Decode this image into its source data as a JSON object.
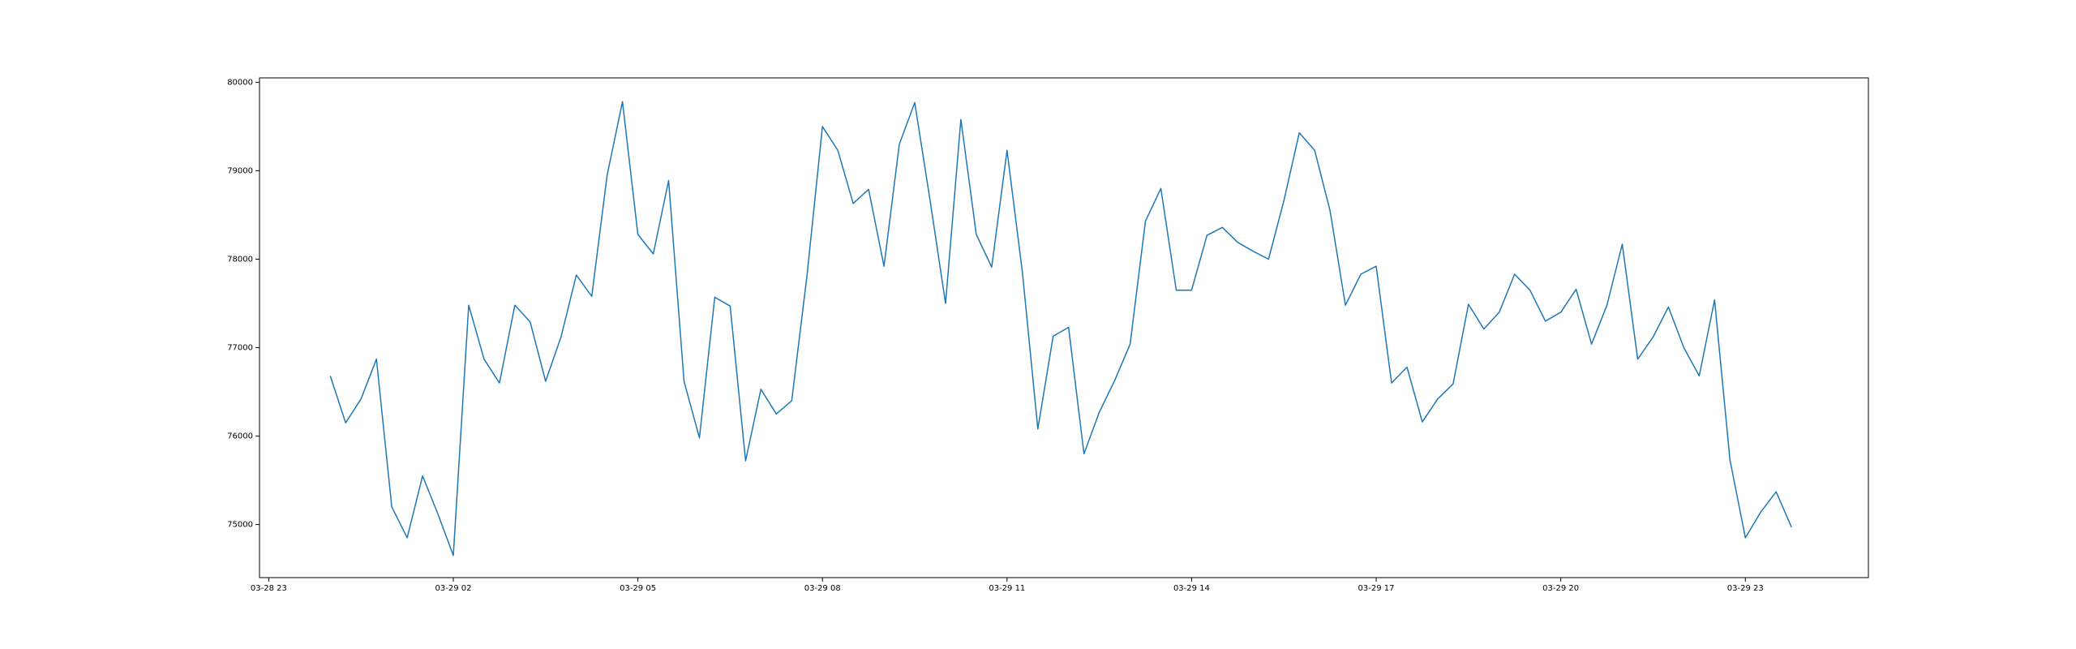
{
  "chart_data": {
    "type": "line",
    "title": "",
    "xlabel": "",
    "ylabel": "",
    "grid": false,
    "x_axis": {
      "tick_labels": [
        "03-28 23",
        "03-29 02",
        "03-29 05",
        "03-29 08",
        "03-29 11",
        "03-29 14",
        "03-29 17",
        "03-29 20",
        "03-29 23"
      ],
      "tick_hours": [
        0,
        3,
        6,
        9,
        12,
        15,
        18,
        21,
        24
      ],
      "xlim_hours": [
        -0.15,
        26
      ]
    },
    "y_axis": {
      "tick_labels": [
        "75000",
        "76000",
        "77000",
        "78000",
        "79000",
        "80000"
      ],
      "tick_values": [
        75000,
        76000,
        77000,
        78000,
        79000,
        80000
      ],
      "ylim": [
        74400,
        80050
      ]
    },
    "series": [
      {
        "color": "#1f77b4",
        "x_hours": [
          1.0,
          1.25,
          1.5,
          1.75,
          2.0,
          2.25,
          2.5,
          2.75,
          3.0,
          3.25,
          3.5,
          3.75,
          4.0,
          4.25,
          4.5,
          4.75,
          5.0,
          5.25,
          5.5,
          5.75,
          6.0,
          6.25,
          6.5,
          6.75,
          7.0,
          7.25,
          7.5,
          7.75,
          8.0,
          8.25,
          8.5,
          8.75,
          9.0,
          9.25,
          9.5,
          9.75,
          10.0,
          10.25,
          10.5,
          10.75,
          11.0,
          11.25,
          11.5,
          11.75,
          12.0,
          12.25,
          12.5,
          12.75,
          13.0,
          13.25,
          13.5,
          13.75,
          14.0,
          14.25,
          14.5,
          14.75,
          15.0,
          15.25,
          15.5,
          15.75,
          16.0,
          16.25,
          16.5,
          16.75,
          17.0,
          17.25,
          17.5,
          17.75,
          18.0,
          18.25,
          18.5,
          18.75,
          19.0,
          19.25,
          19.5,
          19.75,
          20.0,
          20.25,
          20.5,
          20.75,
          21.0,
          21.25,
          21.5,
          21.75,
          22.0,
          22.25,
          22.5,
          22.75,
          23.0,
          23.25,
          23.5,
          23.75,
          24.0,
          24.25,
          24.5,
          24.75
        ],
        "y": [
          76680,
          76150,
          76420,
          76870,
          75200,
          74850,
          75550,
          75120,
          74650,
          77480,
          76870,
          76600,
          77480,
          77290,
          76620,
          77120,
          77820,
          77580,
          78950,
          79780,
          78280,
          78060,
          78890,
          76620,
          75980,
          77570,
          77470,
          75720,
          76530,
          76250,
          76400,
          77820,
          79500,
          79230,
          78630,
          78790,
          77920,
          79300,
          79770,
          78660,
          77500,
          79580,
          78280,
          77910,
          79230,
          77850,
          76080,
          77130,
          77230,
          75800,
          76270,
          76630,
          77040,
          78430,
          78800,
          77650,
          77650,
          78270,
          78360,
          78190,
          78090,
          78000,
          78660,
          79430,
          79230,
          78550,
          77480,
          77830,
          77920,
          76600,
          76780,
          76160,
          76420,
          76590,
          77490,
          77210,
          77400,
          77830,
          77650,
          77300,
          77400,
          77660,
          77040,
          77480,
          78170,
          76870,
          77120,
          77460,
          77000,
          76680,
          77540,
          75730,
          74850,
          75140,
          75370,
          74970
        ]
      }
    ]
  }
}
